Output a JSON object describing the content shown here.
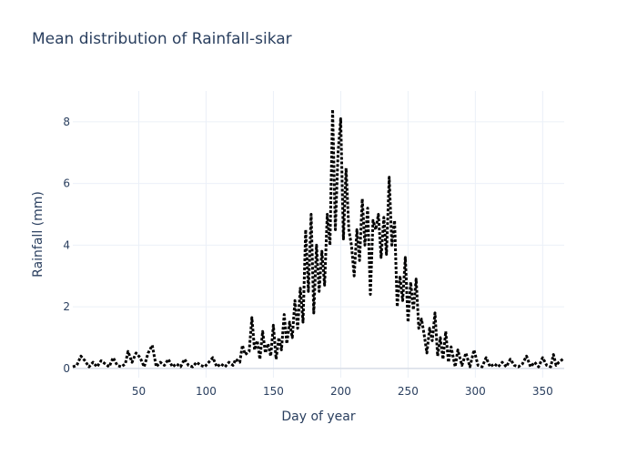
{
  "chart_data": {
    "type": "line",
    "title": "Mean distribution of Rainfall-sikar",
    "xlabel": "Day of year",
    "ylabel": "Rainfall (mm)",
    "xlim": [
      1,
      366
    ],
    "ylim": [
      -0.3,
      9
    ],
    "xticks": [
      50,
      100,
      150,
      200,
      250,
      300,
      350
    ],
    "yticks": [
      0,
      2,
      4,
      6,
      8
    ],
    "grid": true,
    "line_color": "#000000",
    "line_style": "dash",
    "series": [
      {
        "points": [
          [
            1,
            0.05
          ],
          [
            4,
            0.1
          ],
          [
            7,
            0.4
          ],
          [
            10,
            0.25
          ],
          [
            13,
            0.05
          ],
          [
            16,
            0.2
          ],
          [
            19,
            0.05
          ],
          [
            22,
            0.25
          ],
          [
            25,
            0.15
          ],
          [
            28,
            0.05
          ],
          [
            31,
            0.35
          ],
          [
            34,
            0.1
          ],
          [
            37,
            0.05
          ],
          [
            40,
            0.15
          ],
          [
            42,
            0.55
          ],
          [
            45,
            0.2
          ],
          [
            48,
            0.5
          ],
          [
            51,
            0.35
          ],
          [
            54,
            0.05
          ],
          [
            57,
            0.5
          ],
          [
            60,
            0.75
          ],
          [
            63,
            0.05
          ],
          [
            66,
            0.2
          ],
          [
            69,
            0.1
          ],
          [
            72,
            0.3
          ],
          [
            75,
            0.05
          ],
          [
            78,
            0.15
          ],
          [
            81,
            0.05
          ],
          [
            84,
            0.3
          ],
          [
            87,
            0.1
          ],
          [
            90,
            0.05
          ],
          [
            93,
            0.2
          ],
          [
            96,
            0.1
          ],
          [
            99,
            0.05
          ],
          [
            102,
            0.2
          ],
          [
            105,
            0.35
          ],
          [
            108,
            0.05
          ],
          [
            111,
            0.15
          ],
          [
            114,
            0.05
          ],
          [
            117,
            0.2
          ],
          [
            120,
            0.1
          ],
          [
            122,
            0.3
          ],
          [
            125,
            0.2
          ],
          [
            127,
            0.75
          ],
          [
            129,
            0.45
          ],
          [
            132,
            0.55
          ],
          [
            134,
            1.65
          ],
          [
            136,
            0.6
          ],
          [
            138,
            0.9
          ],
          [
            140,
            0.3
          ],
          [
            142,
            1.2
          ],
          [
            144,
            0.5
          ],
          [
            146,
            0.8
          ],
          [
            148,
            0.4
          ],
          [
            150,
            1.4
          ],
          [
            152,
            0.3
          ],
          [
            154,
            1.0
          ],
          [
            156,
            0.6
          ],
          [
            158,
            1.75
          ],
          [
            160,
            0.8
          ],
          [
            162,
            1.5
          ],
          [
            164,
            1.0
          ],
          [
            166,
            2.2
          ],
          [
            168,
            1.3
          ],
          [
            170,
            2.6
          ],
          [
            172,
            1.5
          ],
          [
            174,
            4.5
          ],
          [
            176,
            2.5
          ],
          [
            178,
            5.0
          ],
          [
            180,
            1.8
          ],
          [
            182,
            4.0
          ],
          [
            184,
            2.5
          ],
          [
            186,
            3.8
          ],
          [
            188,
            2.7
          ],
          [
            190,
            5.0
          ],
          [
            192,
            4.0
          ],
          [
            194,
            8.4
          ],
          [
            196,
            4.5
          ],
          [
            198,
            7.0
          ],
          [
            200,
            8.1
          ],
          [
            202,
            4.2
          ],
          [
            204,
            6.5
          ],
          [
            206,
            4.5
          ],
          [
            208,
            4.0
          ],
          [
            210,
            3.0
          ],
          [
            212,
            4.5
          ],
          [
            214,
            3.5
          ],
          [
            216,
            5.5
          ],
          [
            218,
            4.0
          ],
          [
            220,
            5.2
          ],
          [
            222,
            2.4
          ],
          [
            224,
            4.8
          ],
          [
            226,
            4.5
          ],
          [
            228,
            5.0
          ],
          [
            230,
            3.6
          ],
          [
            232,
            4.9
          ],
          [
            234,
            3.7
          ],
          [
            236,
            6.2
          ],
          [
            238,
            4.0
          ],
          [
            240,
            4.8
          ],
          [
            242,
            2.0
          ],
          [
            244,
            3.0
          ],
          [
            246,
            2.2
          ],
          [
            248,
            3.6
          ],
          [
            250,
            1.5
          ],
          [
            252,
            2.8
          ],
          [
            254,
            1.9
          ],
          [
            256,
            2.9
          ],
          [
            258,
            1.3
          ],
          [
            260,
            1.6
          ],
          [
            262,
            1.1
          ],
          [
            264,
            0.5
          ],
          [
            266,
            1.3
          ],
          [
            268,
            0.9
          ],
          [
            270,
            1.8
          ],
          [
            272,
            0.4
          ],
          [
            274,
            1.0
          ],
          [
            276,
            0.3
          ],
          [
            278,
            1.2
          ],
          [
            280,
            0.2
          ],
          [
            282,
            0.7
          ],
          [
            285,
            0.05
          ],
          [
            287,
            0.6
          ],
          [
            290,
            0.1
          ],
          [
            293,
            0.5
          ],
          [
            296,
            0.05
          ],
          [
            299,
            0.6
          ],
          [
            302,
            0.1
          ],
          [
            305,
            0.05
          ],
          [
            308,
            0.35
          ],
          [
            311,
            0.05
          ],
          [
            314,
            0.15
          ],
          [
            317,
            0.05
          ],
          [
            320,
            0.2
          ],
          [
            323,
            0.05
          ],
          [
            326,
            0.3
          ],
          [
            329,
            0.1
          ],
          [
            332,
            0.05
          ],
          [
            335,
            0.15
          ],
          [
            338,
            0.4
          ],
          [
            341,
            0.05
          ],
          [
            344,
            0.2
          ],
          [
            347,
            0.05
          ],
          [
            350,
            0.35
          ],
          [
            353,
            0.1
          ],
          [
            356,
            0.05
          ],
          [
            358,
            0.45
          ],
          [
            360,
            0.1
          ],
          [
            362,
            0.2
          ],
          [
            365,
            0.3
          ]
        ]
      }
    ]
  }
}
